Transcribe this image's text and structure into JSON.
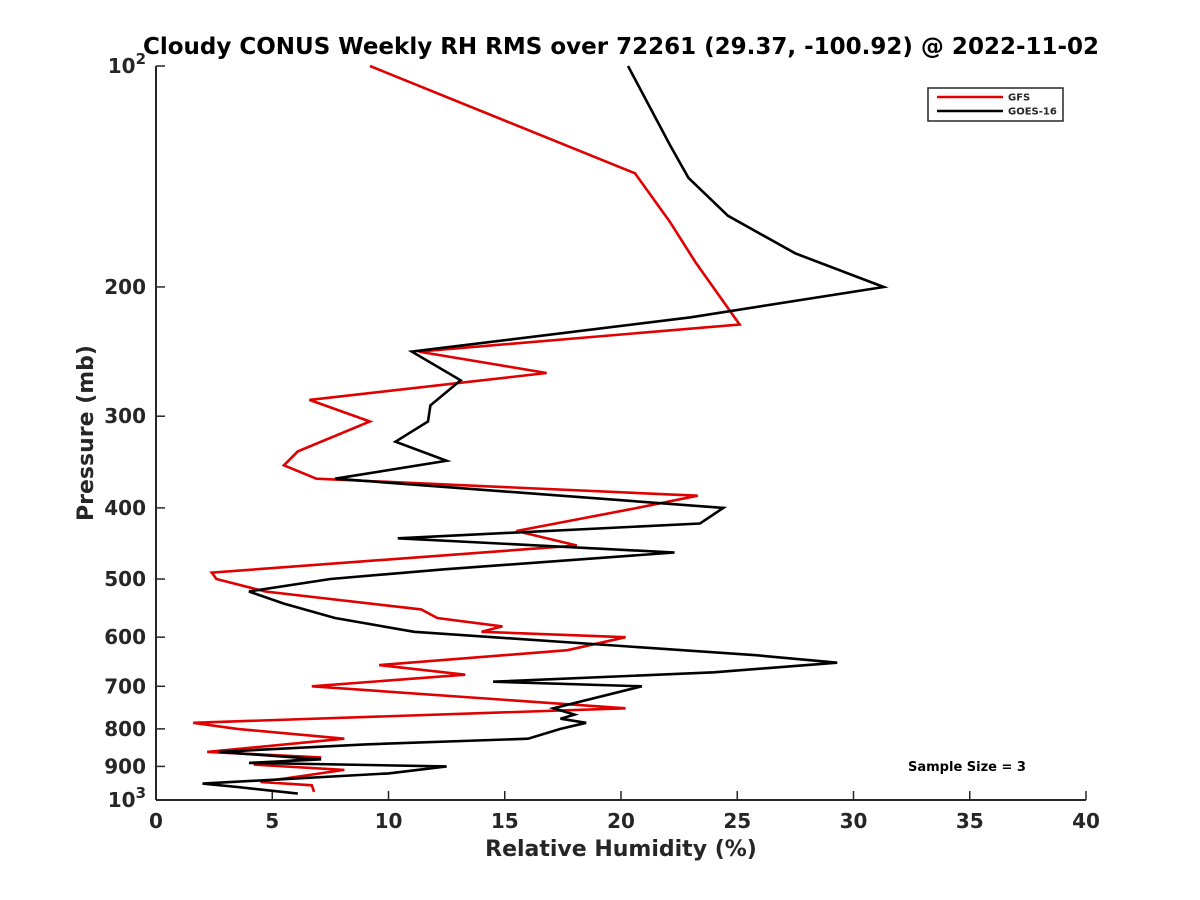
{
  "chart_data": {
    "type": "line",
    "title": "Cloudy CONUS Weekly RH RMS over 72261 (29.37, -100.92) @ 2022-11-02",
    "xlabel": "Relative Humidity (%)",
    "ylabel": "Pressure (mb)",
    "xlim": [
      0,
      40
    ],
    "ylim": [
      100,
      1000
    ],
    "yscale": "log",
    "y_reversed": true,
    "xticks": [
      0,
      5,
      10,
      15,
      20,
      25,
      30,
      35,
      40
    ],
    "yticks": [
      {
        "value": 100,
        "base": "10",
        "exp": "2"
      },
      {
        "value": 200,
        "label": "200"
      },
      {
        "value": 300,
        "label": "300"
      },
      {
        "value": 400,
        "label": "400"
      },
      {
        "value": 500,
        "label": "500"
      },
      {
        "value": 600,
        "label": "600"
      },
      {
        "value": 700,
        "label": "700"
      },
      {
        "value": 800,
        "label": "800"
      },
      {
        "value": 900,
        "label": "900"
      },
      {
        "value": 1000,
        "base": "10",
        "exp": "3"
      }
    ],
    "grid": false,
    "legend_position": "top-right",
    "annotation": "Sample Size = 3",
    "series": [
      {
        "name": "GFS",
        "color": "#e00000",
        "points": [
          [
            6.8,
            975
          ],
          [
            6.7,
            955
          ],
          [
            4.5,
            945
          ],
          [
            8.1,
            910
          ],
          [
            4.2,
            895
          ],
          [
            7.1,
            875
          ],
          [
            2.2,
            860
          ],
          [
            8.1,
            825
          ],
          [
            3.5,
            800
          ],
          [
            1.6,
            785
          ],
          [
            20.2,
            750
          ],
          [
            6.7,
            700
          ],
          [
            13.3,
            675
          ],
          [
            9.6,
            655
          ],
          [
            17.7,
            625
          ],
          [
            20.2,
            600
          ],
          [
            14.0,
            590
          ],
          [
            14.9,
            580
          ],
          [
            12.1,
            565
          ],
          [
            11.4,
            550
          ],
          [
            4.7,
            520
          ],
          [
            2.6,
            500
          ],
          [
            2.4,
            490
          ],
          [
            18.1,
            450
          ],
          [
            15.5,
            430
          ],
          [
            20.7,
            400
          ],
          [
            23.3,
            385
          ],
          [
            6.9,
            365
          ],
          [
            5.5,
            350
          ],
          [
            6.1,
            335
          ],
          [
            9.2,
            305
          ],
          [
            6.6,
            285
          ],
          [
            16.8,
            262
          ],
          [
            11.3,
            245
          ],
          [
            25.1,
            225
          ],
          [
            23.2,
            185
          ],
          [
            22.1,
            163
          ],
          [
            20.6,
            140
          ],
          [
            9.2,
            100
          ]
        ]
      },
      {
        "name": "GOES-16",
        "color": "#000000",
        "points": [
          [
            6.1,
            980
          ],
          [
            3.5,
            960
          ],
          [
            2.0,
            950
          ],
          [
            10.0,
            920
          ],
          [
            12.5,
            900
          ],
          [
            4.0,
            890
          ],
          [
            7.1,
            880
          ],
          [
            2.7,
            860
          ],
          [
            9.0,
            840
          ],
          [
            16.0,
            825
          ],
          [
            17.4,
            800
          ],
          [
            18.5,
            785
          ],
          [
            17.4,
            775
          ],
          [
            18.0,
            765
          ],
          [
            17.1,
            750
          ],
          [
            20.9,
            700
          ],
          [
            14.5,
            690
          ],
          [
            24.0,
            670
          ],
          [
            29.3,
            650
          ],
          [
            25.8,
            635
          ],
          [
            11.1,
            590
          ],
          [
            7.7,
            565
          ],
          [
            5.5,
            540
          ],
          [
            4.0,
            520
          ],
          [
            7.5,
            500
          ],
          [
            12.4,
            485
          ],
          [
            22.3,
            460
          ],
          [
            10.4,
            440
          ],
          [
            23.4,
            420
          ],
          [
            24.4,
            400
          ],
          [
            7.7,
            365
          ],
          [
            12.5,
            345
          ],
          [
            10.3,
            325
          ],
          [
            11.7,
            305
          ],
          [
            11.8,
            290
          ],
          [
            13.1,
            268
          ],
          [
            11.0,
            245
          ],
          [
            23.0,
            220
          ],
          [
            31.3,
            200
          ],
          [
            27.5,
            180
          ],
          [
            24.6,
            160
          ],
          [
            22.9,
            142
          ],
          [
            22.1,
            128
          ],
          [
            20.3,
            100
          ]
        ]
      }
    ]
  }
}
